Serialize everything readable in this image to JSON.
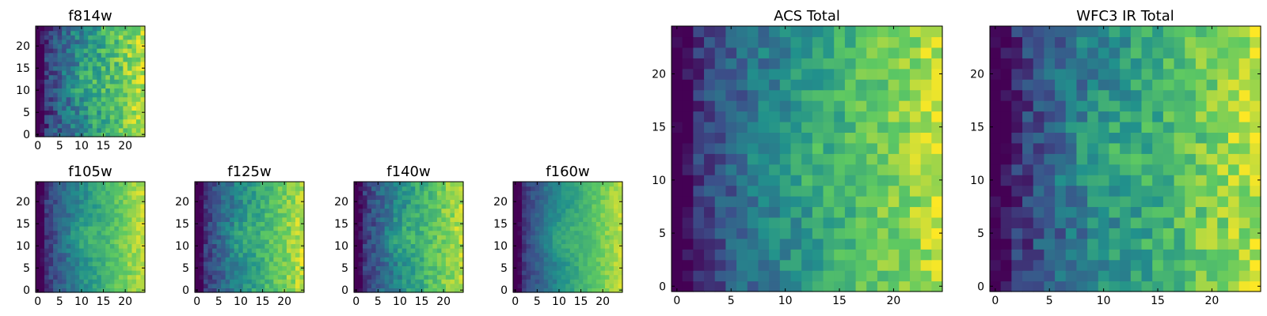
{
  "figure": {
    "colormap": "viridis",
    "colormap_stops": [
      "#440154",
      "#3b528b",
      "#21918c",
      "#5ec962",
      "#fde725"
    ],
    "axes_color": "#000000",
    "background": "#ffffff"
  },
  "chart_data": [
    {
      "type": "heatmap",
      "title": "f814w",
      "shape": [
        25,
        25
      ],
      "noise": 0.15,
      "seed": 3,
      "x_ticks": [
        0,
        5,
        10,
        15,
        20
      ],
      "y_ticks": [
        0,
        5,
        10,
        15,
        20
      ],
      "xlim": [
        -0.5,
        24.5
      ],
      "ylim": [
        -0.5,
        24.5
      ]
    },
    {
      "type": "heatmap",
      "title": "f105w",
      "shape": [
        25,
        25
      ],
      "noise": 0.08,
      "seed": 11,
      "x_ticks": [
        0,
        5,
        10,
        15,
        20
      ],
      "y_ticks": [
        0,
        5,
        10,
        15,
        20
      ],
      "xlim": [
        -0.5,
        24.5
      ],
      "ylim": [
        -0.5,
        24.5
      ]
    },
    {
      "type": "heatmap",
      "title": "f125w",
      "shape": [
        25,
        25
      ],
      "noise": 0.1,
      "seed": 19,
      "x_ticks": [
        0,
        5,
        10,
        15,
        20
      ],
      "y_ticks": [
        0,
        5,
        10,
        15,
        20
      ],
      "xlim": [
        -0.5,
        24.5
      ],
      "ylim": [
        -0.5,
        24.5
      ]
    },
    {
      "type": "heatmap",
      "title": "f140w",
      "shape": [
        25,
        25
      ],
      "noise": 0.1,
      "seed": 27,
      "x_ticks": [
        0,
        5,
        10,
        15,
        20
      ],
      "y_ticks": [
        0,
        5,
        10,
        15,
        20
      ],
      "xlim": [
        -0.5,
        24.5
      ],
      "ylim": [
        -0.5,
        24.5
      ]
    },
    {
      "type": "heatmap",
      "title": "f160w",
      "shape": [
        25,
        25
      ],
      "noise": 0.06,
      "seed": 35,
      "x_ticks": [
        0,
        5,
        10,
        15,
        20
      ],
      "y_ticks": [
        0,
        5,
        10,
        15,
        20
      ],
      "xlim": [
        -0.5,
        24.5
      ],
      "ylim": [
        -0.5,
        24.5
      ]
    },
    {
      "type": "heatmap",
      "title": "ACS Total",
      "shape": [
        25,
        25
      ],
      "noise": 0.12,
      "seed": 43,
      "x_ticks": [
        0,
        5,
        10,
        15,
        20
      ],
      "y_ticks": [
        0,
        5,
        10,
        15,
        20
      ],
      "xlim": [
        -0.5,
        24.5
      ],
      "ylim": [
        -0.5,
        24.5
      ]
    },
    {
      "type": "heatmap",
      "title": "WFC3 IR Total",
      "shape": [
        25,
        25
      ],
      "noise": 0.14,
      "seed": 51,
      "x_ticks": [
        0,
        5,
        10,
        15,
        20
      ],
      "y_ticks": [
        0,
        5,
        10,
        15,
        20
      ],
      "xlim": [
        -0.5,
        24.5
      ],
      "ylim": [
        -0.5,
        24.5
      ]
    }
  ]
}
